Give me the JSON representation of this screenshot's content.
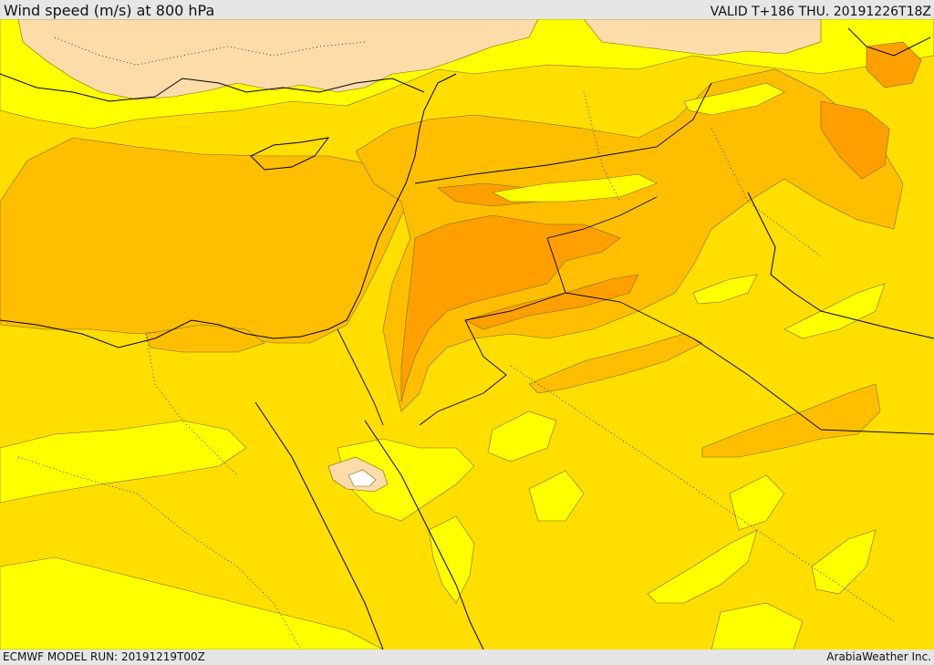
{
  "header": {
    "title": "Wind speed (m/s) at 800 hPa",
    "valid": "VALID T+186 THU. 20191226T18Z"
  },
  "footer": {
    "model_run": "ECMWF MODEL RUN: 20191219T00Z",
    "credit": "ArabiaWeather Inc."
  },
  "colors": {
    "background": "#e6e6e6",
    "calm": "#ffffff",
    "very_light": "#fddcaa",
    "light": "#ffff00",
    "moderate": "#ffde00",
    "fresh": "#ffbf00",
    "strong": "#ff9f00",
    "coastline": "#000000"
  }
}
